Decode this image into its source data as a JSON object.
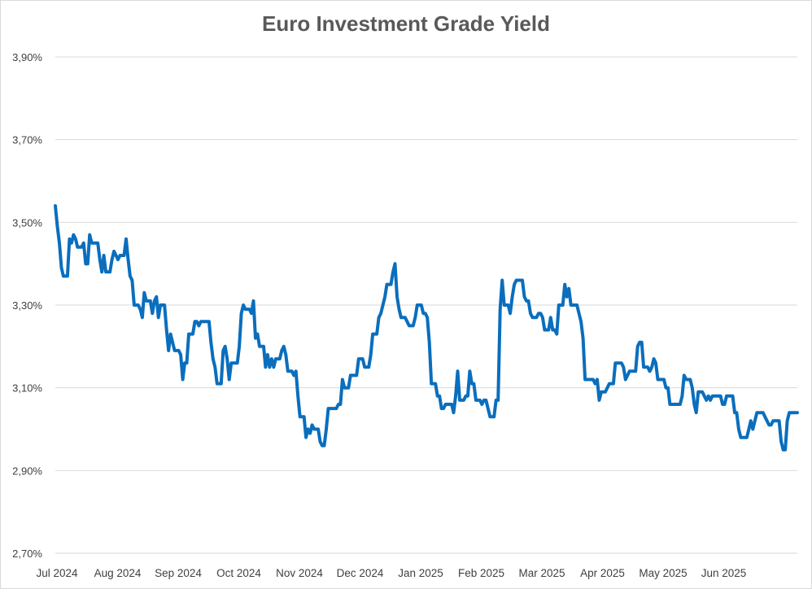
{
  "chart_data": {
    "type": "line",
    "title": "Euro Investment Grade Yield",
    "xlabel": "",
    "ylabel": "",
    "ylim": [
      2.7,
      3.9
    ],
    "y_ticks": [
      2.7,
      2.9,
      3.1,
      3.3,
      3.5,
      3.7,
      3.9
    ],
    "y_tick_labels": [
      "2,70%",
      "2,90%",
      "3,10%",
      "3,30%",
      "3,50%",
      "3,70%",
      "3,90%"
    ],
    "x_tick_labels": [
      "Jul 2024",
      "Aug 2024",
      "Sep 2024",
      "Oct 2024",
      "Nov 2024",
      "Dec 2024",
      "Jan 2025",
      "Feb 2025",
      "Mar 2025",
      "Apr 2025",
      "May 2025",
      "Jun 2025"
    ],
    "grid": true,
    "legend": "none",
    "colors": {
      "series": "#0a6ebd",
      "grid": "#d9d9d9",
      "text": "#404040",
      "title": "#595959"
    },
    "series": [
      {
        "values": [
          3.54,
          3.49,
          3.45,
          3.39,
          3.37,
          3.37,
          3.37,
          3.46,
          3.45,
          3.47,
          3.46,
          3.44,
          3.44,
          3.44,
          3.45,
          3.4,
          3.4,
          3.47,
          3.45,
          3.45,
          3.45,
          3.45,
          3.41,
          3.38,
          3.42,
          3.38,
          3.38,
          3.38,
          3.41,
          3.43,
          3.42,
          3.41,
          3.42,
          3.42,
          3.42,
          3.46,
          3.41,
          3.37,
          3.36,
          3.3,
          3.3,
          3.3,
          3.29,
          3.27,
          3.33,
          3.31,
          3.31,
          3.31,
          3.28,
          3.31,
          3.32,
          3.27,
          3.3,
          3.3,
          3.3,
          3.24,
          3.19,
          3.23,
          3.21,
          3.19,
          3.19,
          3.19,
          3.18,
          3.12,
          3.16,
          3.16,
          3.23,
          3.23,
          3.23,
          3.26,
          3.26,
          3.25,
          3.26,
          3.26,
          3.26,
          3.26,
          3.26,
          3.21,
          3.17,
          3.15,
          3.11,
          3.11,
          3.11,
          3.19,
          3.2,
          3.17,
          3.12,
          3.16,
          3.16,
          3.16,
          3.16,
          3.2,
          3.28,
          3.3,
          3.29,
          3.29,
          3.29,
          3.28,
          3.31,
          3.22,
          3.23,
          3.2,
          3.2,
          3.2,
          3.15,
          3.18,
          3.15,
          3.17,
          3.15,
          3.17,
          3.17,
          3.17,
          3.19,
          3.2,
          3.18,
          3.14,
          3.14,
          3.14,
          3.13,
          3.14,
          3.08,
          3.03,
          3.03,
          3.03,
          2.98,
          3.0,
          2.99,
          3.01,
          3.0,
          3.0,
          3.0,
          2.97,
          2.96,
          2.96,
          3.0,
          3.05,
          3.05,
          3.05,
          3.05,
          3.05,
          3.06,
          3.06,
          3.12,
          3.1,
          3.1,
          3.1,
          3.13,
          3.13,
          3.13,
          3.13,
          3.17,
          3.17,
          3.17,
          3.15,
          3.15,
          3.15,
          3.18,
          3.23,
          3.23,
          3.23,
          3.27,
          3.28,
          3.3,
          3.32,
          3.35,
          3.35,
          3.35,
          3.38,
          3.4,
          3.32,
          3.29,
          3.27,
          3.27,
          3.27,
          3.26,
          3.25,
          3.25,
          3.25,
          3.27,
          3.3,
          3.3,
          3.3,
          3.28,
          3.28,
          3.27,
          3.21,
          3.11,
          3.11,
          3.11,
          3.08,
          3.08,
          3.05,
          3.05,
          3.06,
          3.06,
          3.06,
          3.06,
          3.04,
          3.08,
          3.14,
          3.07,
          3.07,
          3.07,
          3.08,
          3.08,
          3.14,
          3.11,
          3.11,
          3.07,
          3.07,
          3.07,
          3.06,
          3.07,
          3.07,
          3.05,
          3.03,
          3.03,
          3.03,
          3.07,
          3.07,
          3.29,
          3.36,
          3.3,
          3.3,
          3.3,
          3.28,
          3.32,
          3.35,
          3.36,
          3.36,
          3.36,
          3.36,
          3.32,
          3.31,
          3.31,
          3.28,
          3.27,
          3.27,
          3.27,
          3.28,
          3.28,
          3.27,
          3.24,
          3.24,
          3.24,
          3.27,
          3.24,
          3.24,
          3.23,
          3.3,
          3.3,
          3.3,
          3.35,
          3.32,
          3.34,
          3.3,
          3.3,
          3.3,
          3.3,
          3.28,
          3.26,
          3.22,
          3.12,
          3.12,
          3.12,
          3.12,
          3.12,
          3.11,
          3.12,
          3.07,
          3.09,
          3.09,
          3.09,
          3.1,
          3.11,
          3.11,
          3.11,
          3.16,
          3.16,
          3.16,
          3.16,
          3.15,
          3.12,
          3.13,
          3.14,
          3.14,
          3.14,
          3.14,
          3.2,
          3.21,
          3.21,
          3.15,
          3.15,
          3.15,
          3.14,
          3.15,
          3.17,
          3.16,
          3.12,
          3.12,
          3.12,
          3.12,
          3.1,
          3.1,
          3.06,
          3.06,
          3.06,
          3.06,
          3.06,
          3.06,
          3.08,
          3.13,
          3.12,
          3.12,
          3.12,
          3.1,
          3.06,
          3.04,
          3.09,
          3.09,
          3.09,
          3.08,
          3.07,
          3.08,
          3.07,
          3.08,
          3.08,
          3.08,
          3.08,
          3.08,
          3.06,
          3.06,
          3.08,
          3.08,
          3.08,
          3.08,
          3.04,
          3.04,
          3.0,
          2.98,
          2.98,
          2.98,
          2.98,
          3.0,
          3.02,
          3.0,
          3.02,
          3.04,
          3.04,
          3.04,
          3.04,
          3.03,
          3.02,
          3.01,
          3.01,
          3.02,
          3.02,
          3.02,
          3.02,
          2.97,
          2.95,
          2.95,
          3.02,
          3.04,
          3.04,
          3.04,
          3.04,
          3.04
        ]
      }
    ]
  }
}
